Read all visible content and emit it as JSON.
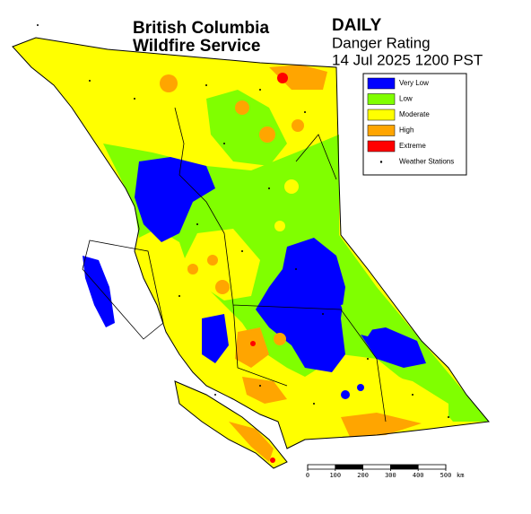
{
  "title": [
    "British Columbia",
    "Wildfire Service"
  ],
  "product": "DAILY",
  "subtitle": "Danger Rating",
  "timestamp": "14 Jul 2025 1200 PST",
  "legend": [
    {
      "label": "Very Low",
      "color": "#0000ff"
    },
    {
      "label": "Low",
      "color": "#80ff00"
    },
    {
      "label": "Moderate",
      "color": "#ffff00"
    },
    {
      "label": "High",
      "color": "#ffa500"
    },
    {
      "label": "Extreme",
      "color": "#ff0000"
    },
    {
      "label": "Weather Stations",
      "color": "#000000"
    }
  ],
  "scale": {
    "ticks": [
      0,
      100,
      200,
      300,
      400,
      500
    ],
    "unit": "km"
  }
}
